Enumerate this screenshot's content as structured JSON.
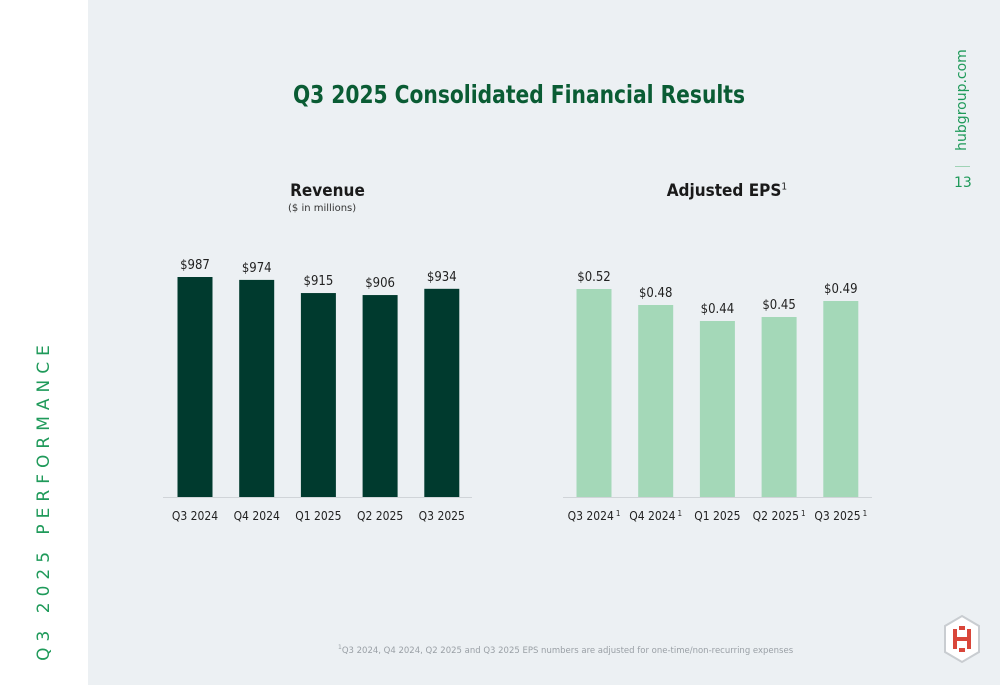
{
  "sidebar": {
    "label": "Q3 2025 PERFORMANCE"
  },
  "header": {
    "title": "Q3 2025 Consolidated Financial Results",
    "site": "hubgroup.com",
    "page_number": "13"
  },
  "colors": {
    "revenue": "#003a2e",
    "eps": "#a4d8b8",
    "accent": "#1f9a5a"
  },
  "footnote": {
    "marker": "1",
    "text": "Q3 2024, Q4 2024, Q2 2025 and Q3 2025 EPS numbers are adjusted for one-time/non-recurring expenses"
  },
  "chart_data": [
    {
      "type": "bar",
      "title": "Revenue",
      "subtitle": "($ in millions)",
      "categories": [
        "Q3 2024",
        "Q4 2024",
        "Q1 2025",
        "Q2 2025",
        "Q3 2025"
      ],
      "category_footnotes": [
        "",
        "",
        "",
        "",
        ""
      ],
      "values": [
        987,
        974,
        915,
        906,
        934
      ],
      "labels": [
        "$987",
        "$974",
        "$915",
        "$906",
        "$934"
      ],
      "ylim": [
        0,
        987
      ],
      "grid": false,
      "color": "#003a2e"
    },
    {
      "type": "bar",
      "title": "Adjusted EPS",
      "title_footnote": "1",
      "categories": [
        "Q3 2024",
        "Q4 2024",
        "Q1 2025",
        "Q2 2025",
        "Q3 2025"
      ],
      "category_footnotes": [
        "1",
        "1",
        "",
        "1",
        "1"
      ],
      "values": [
        0.52,
        0.48,
        0.44,
        0.45,
        0.49
      ],
      "labels": [
        "$0.52",
        "$0.48",
        "$0.44",
        "$0.45",
        "$0.49"
      ],
      "ylim": [
        0,
        0.52
      ],
      "grid": false,
      "color": "#a4d8b8"
    }
  ]
}
